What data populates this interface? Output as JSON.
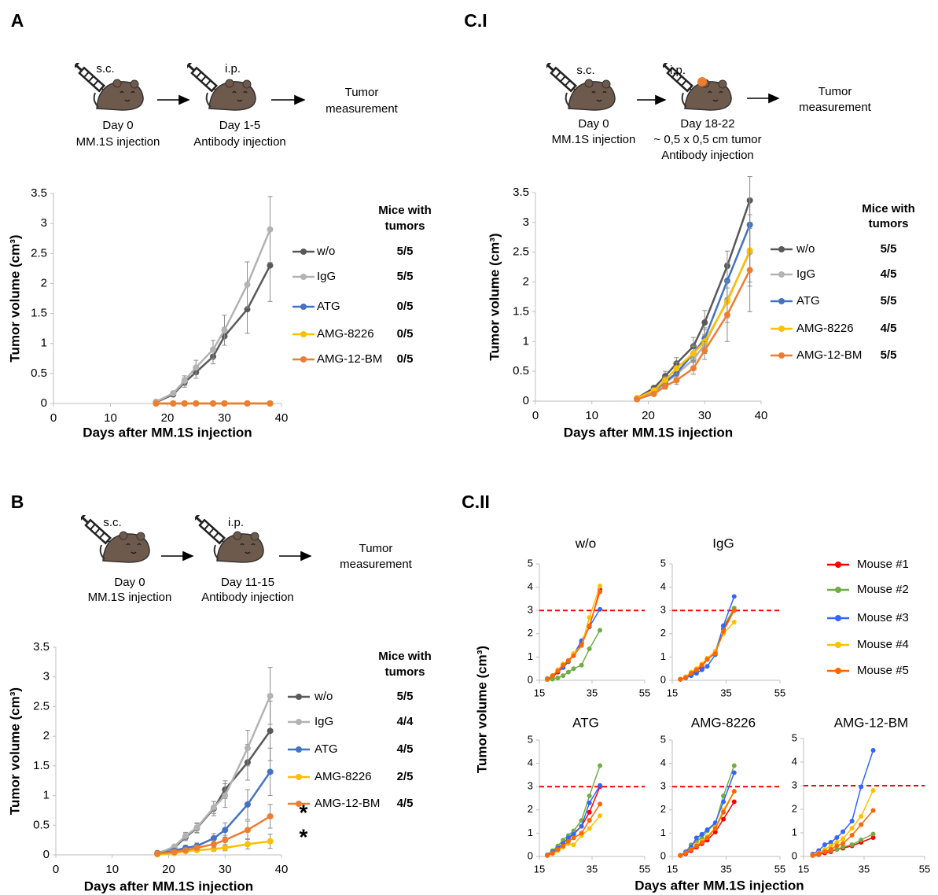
{
  "panels": [
    {
      "label": "A",
      "steps": [
        {
          "route": "s.c.",
          "caption": [
            "Day 0",
            "MM.1S injection"
          ]
        },
        {
          "route": "i.p.",
          "caption": [
            "Day 1-5",
            "Antibody injection"
          ]
        }
      ],
      "outcome": [
        "Tumor",
        "measurement"
      ]
    },
    {
      "label": "C.I",
      "steps": [
        {
          "route": "s.c.",
          "caption": [
            "Day 0",
            "MM.1S injection"
          ]
        },
        {
          "route": "i.p.",
          "caption": [
            "Day 18-22",
            "~ 0,5 x 0,5 cm tumor",
            "Antibody injection"
          ]
        }
      ],
      "outcome": [
        "Tumor",
        "measurement"
      ]
    },
    {
      "label": "B",
      "steps": [
        {
          "route": "s.c.",
          "caption": [
            "Day 0",
            "MM.1S injection"
          ]
        },
        {
          "route": "i.p.",
          "caption": [
            "Day 11-15",
            "Antibody injection"
          ]
        }
      ],
      "outcome": [
        "Tumor",
        "measurement"
      ]
    },
    {
      "label": "C.II"
    }
  ],
  "chart_data": [
    {
      "type": "line",
      "xlabel": "Days after MM.1S injection",
      "ylabel": "Tumor volume (cm³)",
      "xlim": [
        0,
        40
      ],
      "ylim": [
        0,
        3.5
      ],
      "xticks": [
        0,
        10,
        20,
        30,
        40
      ],
      "yticks": [
        0,
        0.5,
        1,
        1.5,
        2,
        2.5,
        3,
        3.5
      ],
      "legend_title": [
        "Mice with",
        "tumors"
      ],
      "x": [
        18,
        21,
        23,
        25,
        28,
        30,
        34,
        38
      ],
      "series": [
        {
          "name": "w/o",
          "mice": "5/5",
          "color": "#595959",
          "values": [
            0.02,
            0.15,
            0.35,
            0.52,
            0.78,
            1.12,
            1.57,
            2.3
          ],
          "errors": [
            0.01,
            0.03,
            0.08,
            0.1,
            0.12,
            0.15,
            0.4,
            0.6
          ]
        },
        {
          "name": "IgG",
          "mice": "5/5",
          "color": "#b3b3b3",
          "values": [
            0.03,
            0.17,
            0.38,
            0.6,
            0.9,
            1.22,
            1.98,
            2.9
          ],
          "errors": [
            0.01,
            0.03,
            0.08,
            0.12,
            0.15,
            0.25,
            0.38,
            0.55
          ]
        },
        {
          "name": "ATG",
          "mice": "0/5",
          "color": "#4472c4",
          "values": [
            0,
            0,
            0,
            0,
            0,
            0,
            0,
            0
          ]
        },
        {
          "name": "AMG-8226",
          "mice": "0/5",
          "color": "#ffc000",
          "values": [
            0,
            0,
            0,
            0,
            0,
            0,
            0,
            0
          ]
        },
        {
          "name": "AMG-12-BM",
          "mice": "0/5",
          "color": "#ed7d31",
          "values": [
            0,
            0,
            0,
            0,
            0,
            0,
            0,
            0
          ]
        }
      ]
    },
    {
      "type": "line",
      "xlabel": "Days after MM.1S injection",
      "ylabel": "Tumor volume (cm³)",
      "xlim": [
        0,
        40
      ],
      "ylim": [
        0,
        3.5
      ],
      "xticks": [
        0,
        10,
        20,
        30,
        40
      ],
      "yticks": [
        0,
        0.5,
        1,
        1.5,
        2,
        2.5,
        3,
        3.5
      ],
      "legend_title": [
        "Mice with",
        "tumors"
      ],
      "x": [
        18,
        21,
        23,
        25,
        28,
        30,
        34,
        38
      ],
      "series": [
        {
          "name": "w/o",
          "mice": "5/5",
          "color": "#595959",
          "values": [
            0.05,
            0.22,
            0.42,
            0.63,
            0.92,
            1.32,
            2.27,
            3.37
          ],
          "errors": [
            0.01,
            0.04,
            0.08,
            0.1,
            0.15,
            0.2,
            0.25,
            0.4
          ]
        },
        {
          "name": "IgG",
          "mice": "4/5",
          "color": "#b3b3b3",
          "values": [
            0.04,
            0.15,
            0.3,
            0.45,
            0.7,
            0.95,
            1.7,
            2.5
          ],
          "errors": [
            0.01,
            0.03,
            0.06,
            0.08,
            0.12,
            0.15,
            0.3,
            0.5
          ]
        },
        {
          "name": "ATG",
          "mice": "5/5",
          "color": "#4472c4",
          "values": [
            0.04,
            0.18,
            0.32,
            0.47,
            0.8,
            1.05,
            2.02,
            2.96
          ],
          "errors": [
            0.01,
            0.04,
            0.06,
            0.08,
            0.12,
            0.18,
            0.3,
            0.45
          ]
        },
        {
          "name": "AMG-8226",
          "mice": "4/5",
          "color": "#ffc000",
          "values": [
            0.05,
            0.18,
            0.35,
            0.55,
            0.8,
            1,
            1.67,
            2.53
          ],
          "errors": [
            0.01,
            0.04,
            0.07,
            0.1,
            0.14,
            0.2,
            0.35,
            0.6
          ]
        },
        {
          "name": "AMG-12-BM",
          "mice": "5/5",
          "color": "#ed7d31",
          "values": [
            0.03,
            0.12,
            0.25,
            0.35,
            0.55,
            0.85,
            1.45,
            2.2
          ],
          "errors": [
            0.01,
            0.03,
            0.05,
            0.07,
            0.1,
            0.15,
            0.45,
            0.7
          ]
        }
      ]
    },
    {
      "type": "line",
      "xlabel": "Days after MM.1S injection",
      "ylabel": "Tumor volume (cm³)",
      "xlim": [
        0,
        40
      ],
      "ylim": [
        0,
        3.5
      ],
      "xticks": [
        0,
        10,
        20,
        30,
        40
      ],
      "yticks": [
        0,
        0.5,
        1,
        1.5,
        2,
        2.5,
        3,
        3.5
      ],
      "legend_title": [
        "Mice with",
        "tumors"
      ],
      "annotations": [
        "*",
        "*"
      ],
      "x": [
        18,
        21,
        23,
        25,
        28,
        30,
        34,
        38
      ],
      "series": [
        {
          "name": "w/o",
          "mice": "5/5",
          "color": "#595959",
          "values": [
            0.03,
            0.12,
            0.3,
            0.45,
            0.78,
            1.1,
            1.56,
            2.09
          ],
          "errors": [
            0.01,
            0.03,
            0.06,
            0.08,
            0.12,
            0.15,
            0.3,
            0.5
          ]
        },
        {
          "name": "IgG",
          "mice": "4/4",
          "color": "#b3b3b3",
          "values": [
            0.02,
            0.14,
            0.32,
            0.46,
            0.8,
            1,
            1.8,
            2.68
          ],
          "errors": [
            0.01,
            0.03,
            0.06,
            0.08,
            0.1,
            0.2,
            0.3,
            0.48
          ]
        },
        {
          "name": "ATG",
          "mice": "4/5",
          "color": "#4472c4",
          "values": [
            0.02,
            0.07,
            0.12,
            0.15,
            0.28,
            0.42,
            0.85,
            1.4
          ],
          "errors": [
            0.01,
            0.02,
            0.04,
            0.05,
            0.08,
            0.12,
            0.25,
            0.4
          ]
        },
        {
          "name": "AMG-8226",
          "mice": "2/5",
          "color": "#ffc000",
          "values": [
            0.01,
            0.03,
            0.06,
            0.08,
            0.1,
            0.12,
            0.18,
            0.23
          ],
          "errors": [
            0.01,
            0.01,
            0.02,
            0.03,
            0.04,
            0.05,
            0.08,
            0.12
          ]
        },
        {
          "name": "AMG-12-BM",
          "mice": "4/5",
          "color": "#ed7d31",
          "values": [
            0.02,
            0.05,
            0.08,
            0.12,
            0.18,
            0.25,
            0.42,
            0.65
          ],
          "errors": [
            0.01,
            0.02,
            0.03,
            0.04,
            0.06,
            0.08,
            0.15,
            0.2
          ]
        }
      ]
    },
    {
      "type": "line",
      "title": "w/o",
      "xlabel": "Days after MM.1S injection",
      "ylabel": "Tumor volume (cm³)",
      "xlim": [
        15,
        55
      ],
      "ylim": [
        0,
        5
      ],
      "xticks": [
        15,
        35,
        55
      ],
      "yticks": [
        0,
        1,
        2,
        3,
        4,
        5
      ],
      "reference_line": {
        "value": 3,
        "color": "#ff0000"
      },
      "x": [
        18,
        20,
        22,
        24,
        26,
        28,
        31,
        34,
        38
      ],
      "series": [
        {
          "name": "Mouse #1",
          "color": "#ff0000",
          "values": [
            0.05,
            0.15,
            0.35,
            0.55,
            0.8,
            1.1,
            1.6,
            2.3,
            3.9
          ]
        },
        {
          "name": "Mouse #2",
          "color": "#70ad47",
          "values": [
            0.03,
            0.05,
            0.1,
            0.2,
            0.35,
            0.5,
            0.65,
            1.35,
            2.15
          ]
        },
        {
          "name": "Mouse #3",
          "color": "#3366ff",
          "values": [
            0.07,
            0.2,
            0.4,
            0.55,
            0.8,
            1.1,
            1.7,
            2.3,
            3.05
          ]
        },
        {
          "name": "Mouse #4",
          "color": "#ffc000",
          "values": [
            0.05,
            0.2,
            0.45,
            0.7,
            0.85,
            1.15,
            1.5,
            2.7,
            4.05
          ]
        },
        {
          "name": "Mouse #5",
          "color": "#ff6600",
          "values": [
            0.06,
            0.2,
            0.4,
            0.65,
            0.85,
            1.05,
            1.5,
            2.35,
            3.8
          ]
        }
      ]
    },
    {
      "type": "line",
      "title": "IgG",
      "xlim": [
        15,
        55
      ],
      "ylim": [
        0,
        5
      ],
      "xticks": [
        15,
        35,
        55
      ],
      "yticks": [
        0,
        1,
        2,
        3,
        4,
        5
      ],
      "reference_line": {
        "value": 3,
        "color": "#ff0000"
      },
      "x": [
        18,
        20,
        22,
        24,
        26,
        28,
        31,
        34,
        38
      ],
      "series": [
        {
          "name": "Mouse #1",
          "color": "#ff0000",
          "values": [
            0.04,
            0.12,
            0.25,
            0.4,
            0.6,
            0.9,
            1.2,
            2.2,
            3
          ]
        },
        {
          "name": "Mouse #2",
          "color": "#70ad47",
          "values": [
            0.05,
            0.15,
            0.3,
            0.45,
            0.65,
            0.95,
            1.25,
            2.3,
            3.1
          ]
        },
        {
          "name": "Mouse #3",
          "color": "#3366ff",
          "values": [
            0.04,
            0.1,
            0.2,
            0.3,
            0.45,
            0.6,
            1.1,
            2.35,
            3.6
          ]
        },
        {
          "name": "Mouse #4",
          "color": "#ffc000",
          "values": [
            0.05,
            0.15,
            0.35,
            0.5,
            0.7,
            0.95,
            1.25,
            2,
            2.5
          ]
        },
        {
          "name": "Mouse #5",
          "color": "#ff6600",
          "values": [
            0.04,
            0.12,
            0.3,
            0.45,
            0.65,
            0.9,
            1.15,
            2.1,
            3
          ]
        }
      ]
    },
    {
      "type": "line",
      "title": "ATG",
      "xlim": [
        15,
        55
      ],
      "ylim": [
        0,
        5
      ],
      "xticks": [
        15,
        35,
        55
      ],
      "yticks": [
        0,
        1,
        2,
        3,
        4,
        5
      ],
      "reference_line": {
        "value": 3,
        "color": "#ff0000"
      },
      "x": [
        18,
        20,
        22,
        24,
        26,
        28,
        31,
        34,
        38
      ],
      "series": [
        {
          "name": "Mouse #1",
          "color": "#ff0000",
          "values": [
            0.05,
            0.2,
            0.35,
            0.55,
            0.8,
            1,
            1.3,
            1.9,
            3
          ]
        },
        {
          "name": "Mouse #2",
          "color": "#70ad47",
          "values": [
            0.07,
            0.25,
            0.45,
            0.7,
            0.9,
            1.1,
            1.55,
            2.6,
            3.9
          ]
        },
        {
          "name": "Mouse #3",
          "color": "#3366ff",
          "values": [
            0.05,
            0.2,
            0.35,
            0.55,
            0.8,
            0.95,
            1.3,
            2.3,
            3.05
          ]
        },
        {
          "name": "Mouse #4",
          "color": "#ffc000",
          "values": [
            0.04,
            0.12,
            0.25,
            0.4,
            0.55,
            0.5,
            0.9,
            1.2,
            1.75
          ]
        },
        {
          "name": "Mouse #5",
          "color": "#ff6600",
          "values": [
            0.04,
            0.15,
            0.3,
            0.45,
            0.65,
            0.8,
            1,
            1.55,
            2.25
          ]
        }
      ]
    },
    {
      "type": "line",
      "title": "AMG-8226",
      "xlim": [
        15,
        55
      ],
      "ylim": [
        0,
        5
      ],
      "xticks": [
        15,
        35,
        55
      ],
      "yticks": [
        0,
        1,
        2,
        3,
        4,
        5
      ],
      "reference_line": {
        "value": 3,
        "color": "#ff0000"
      },
      "x": [
        18,
        20,
        22,
        24,
        26,
        28,
        31,
        34,
        38
      ],
      "series": [
        {
          "name": "Mouse #1",
          "color": "#ff0000",
          "values": [
            0.04,
            0.12,
            0.25,
            0.4,
            0.55,
            0.7,
            1.05,
            1.6,
            2.35
          ]
        },
        {
          "name": "Mouse #2",
          "color": "#70ad47",
          "values": [
            0.06,
            0.2,
            0.5,
            0.65,
            0.8,
            1.1,
            1.4,
            2.6,
            3.9
          ]
        },
        {
          "name": "Mouse #3",
          "color": "#3366ff",
          "values": [
            0.05,
            0.2,
            0.4,
            0.8,
            0.95,
            1.15,
            1.45,
            2.35,
            3.6
          ]
        },
        {
          "name": "Mouse #4",
          "color": "#ffc000",
          "values": [
            0.05,
            0.15,
            0.3,
            0.5,
            0.65,
            0.85,
            1.25,
            2,
            2.8
          ]
        },
        {
          "name": "Mouse #5",
          "color": "#ff6600",
          "values": [
            0.04,
            0.15,
            0.3,
            0.45,
            0.6,
            0.8,
            1.2,
            1.9,
            2.8
          ]
        }
      ]
    },
    {
      "type": "line",
      "title": "AMG-12-BM",
      "xlim": [
        15,
        55
      ],
      "ylim": [
        0,
        5
      ],
      "xticks": [
        15,
        35,
        55
      ],
      "yticks": [
        0,
        1,
        2,
        3,
        4,
        5
      ],
      "reference_line": {
        "value": 3,
        "color": "#ff0000"
      },
      "x": [
        18,
        20,
        22,
        24,
        26,
        28,
        31,
        34,
        38
      ],
      "series": [
        {
          "name": "Mouse #1",
          "color": "#ff0000",
          "values": [
            0.04,
            0.08,
            0.15,
            0.2,
            0.3,
            0.35,
            0.45,
            0.6,
            0.8
          ]
        },
        {
          "name": "Mouse #2",
          "color": "#70ad47",
          "values": [
            0.05,
            0.1,
            0.2,
            0.25,
            0.3,
            0.4,
            0.5,
            0.7,
            0.95
          ]
        },
        {
          "name": "Mouse #3",
          "color": "#3366ff",
          "values": [
            0.1,
            0.25,
            0.5,
            0.6,
            0.8,
            1.05,
            1.5,
            2.95,
            4.5
          ]
        },
        {
          "name": "Mouse #4",
          "color": "#ffc000",
          "values": [
            0.05,
            0.15,
            0.3,
            0.45,
            0.6,
            0.75,
            1.2,
            1.7,
            2.8
          ]
        },
        {
          "name": "Mouse #5",
          "color": "#ff6600",
          "values": [
            0.04,
            0.12,
            0.2,
            0.3,
            0.45,
            0.55,
            0.9,
            1.35,
            1.95
          ]
        }
      ]
    }
  ]
}
